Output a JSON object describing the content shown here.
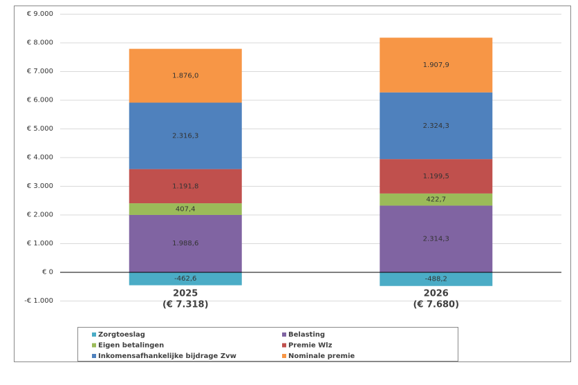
{
  "chart_data": {
    "type": "stacked_bar",
    "categories": [
      "2025",
      "2026"
    ],
    "category_sublabels": [
      "(€ 7.318)",
      "(€ 7.680)"
    ],
    "series": [
      {
        "name": "Zorgtoeslag",
        "color": "#4bacc6",
        "values": [
          -462.6,
          -488.2
        ],
        "value_labels": [
          "-462,6",
          "-488,2"
        ]
      },
      {
        "name": "Belasting",
        "color": "#8064a2",
        "values": [
          1988.6,
          2314.3
        ],
        "value_labels": [
          "1.988,6",
          "2.314,3"
        ]
      },
      {
        "name": "Eigen betalingen",
        "color": "#9bbb59",
        "values": [
          407.4,
          422.7
        ],
        "value_labels": [
          "407,4",
          "422,7"
        ]
      },
      {
        "name": "Premie Wlz",
        "color": "#c0504d",
        "values": [
          1191.8,
          1199.5
        ],
        "value_labels": [
          "1.191,8",
          "1.199,5"
        ]
      },
      {
        "name": "Inkomensafhankelijke bijdrage Zvw",
        "color": "#4f81bd",
        "values": [
          2316.3,
          2324.3
        ],
        "value_labels": [
          "2.316,3",
          "2.324,3"
        ]
      },
      {
        "name": "Nominale premie",
        "color": "#f79646",
        "values": [
          1876.0,
          1907.9
        ],
        "value_labels": [
          "1.876,0",
          "1.907,9"
        ]
      }
    ],
    "ylim": [
      -1000,
      9000
    ],
    "yticks": [
      {
        "value": -1000,
        "label": "-€ 1.000"
      },
      {
        "value": 0,
        "label": "€ 0"
      },
      {
        "value": 1000,
        "label": "€ 1.000"
      },
      {
        "value": 2000,
        "label": "€ 2.000"
      },
      {
        "value": 3000,
        "label": "€ 3.000"
      },
      {
        "value": 4000,
        "label": "€ 4.000"
      },
      {
        "value": 5000,
        "label": "€ 5.000"
      },
      {
        "value": 6000,
        "label": "€ 6.000"
      },
      {
        "value": 7000,
        "label": "€ 7.000"
      },
      {
        "value": 8000,
        "label": "€ 8.000"
      },
      {
        "value": 9000,
        "label": "€ 9.000"
      }
    ],
    "grid": true,
    "legend_position": "bottom"
  }
}
